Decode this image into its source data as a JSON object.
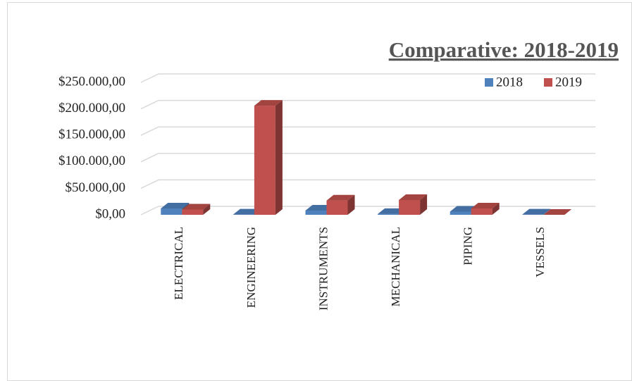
{
  "chart_data": {
    "type": "bar3d",
    "title": "Comparative: 2018-2019",
    "categories": [
      "ELECTRICAL",
      "ENGINEERING",
      "INSTRUMENTS",
      "MECHANICAL",
      "PIPING",
      "VESSELS"
    ],
    "series": [
      {
        "name": "2018",
        "color": "#4f81bd",
        "values": [
          12000,
          500,
          8000,
          1500,
          6000,
          500
        ]
      },
      {
        "name": "2019",
        "color": "#c0504d",
        "values": [
          10000,
          206000,
          27000,
          28000,
          12000,
          0
        ]
      }
    ],
    "ylim": [
      0,
      250000
    ],
    "yticks": [
      {
        "value": 0,
        "label": "$0,00"
      },
      {
        "value": 50000,
        "label": "$50.000,00"
      },
      {
        "value": 100000,
        "label": "$100.000,00"
      },
      {
        "value": 150000,
        "label": "$150.000,00"
      },
      {
        "value": 200000,
        "label": "$200.000,00"
      },
      {
        "value": 250000,
        "label": "$250.000,00"
      }
    ],
    "grid": true,
    "legend": "top-right"
  }
}
